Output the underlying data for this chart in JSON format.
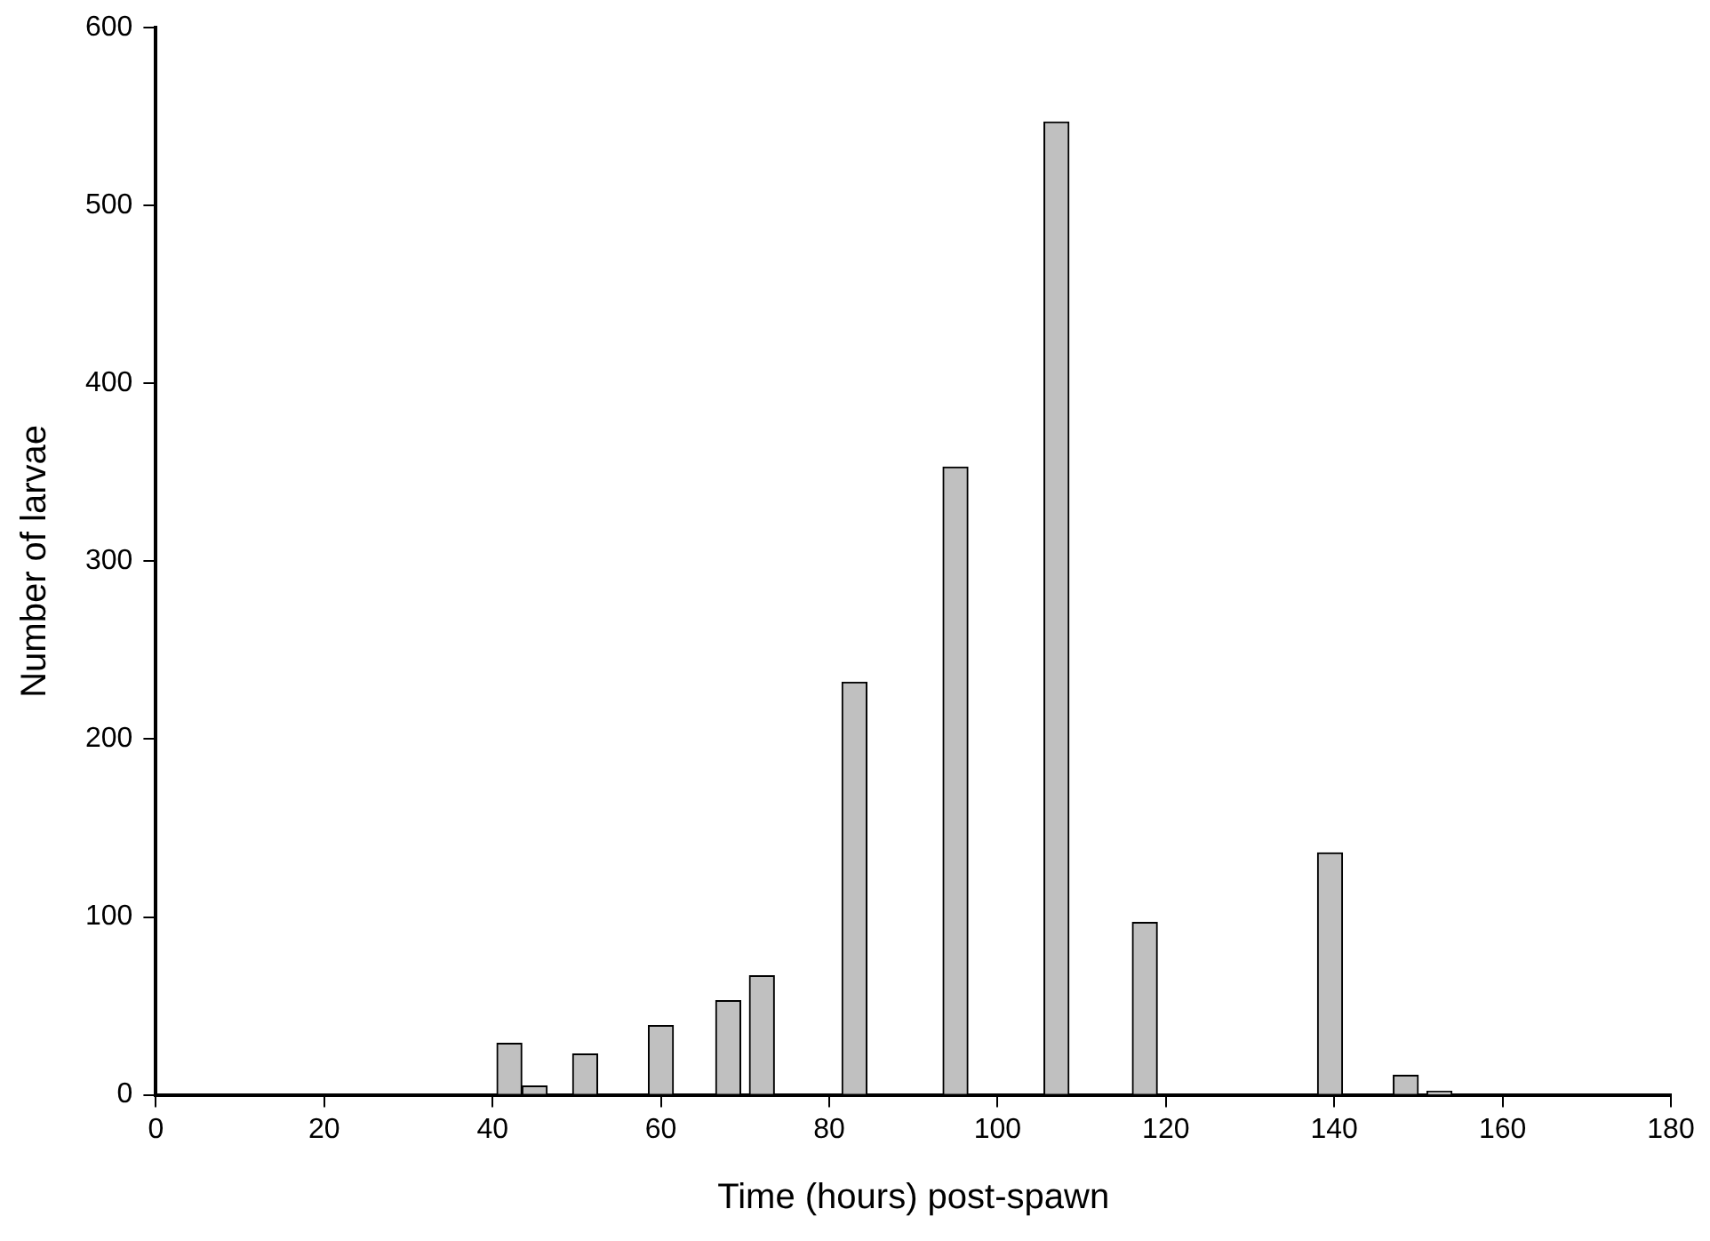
{
  "chart_data": {
    "type": "bar",
    "xlabel": "Time (hours) post-spawn",
    "ylabel": "Number of larvae",
    "x": [
      42,
      45,
      51,
      60,
      68,
      72,
      83,
      95,
      107,
      117.5,
      139.5,
      148.5,
      152.5
    ],
    "values": [
      29,
      5,
      23,
      39,
      53,
      67,
      232,
      353,
      547,
      97,
      136,
      11,
      2
    ],
    "color": "#c0c0c0",
    "xlim": [
      0,
      180
    ],
    "xticks": [
      0,
      20,
      40,
      60,
      80,
      100,
      120,
      140,
      160,
      180
    ],
    "ylim": [
      0,
      600
    ],
    "yticks": [
      0,
      100,
      200,
      300,
      400,
      500,
      600
    ],
    "grid": false,
    "legend": false
  }
}
